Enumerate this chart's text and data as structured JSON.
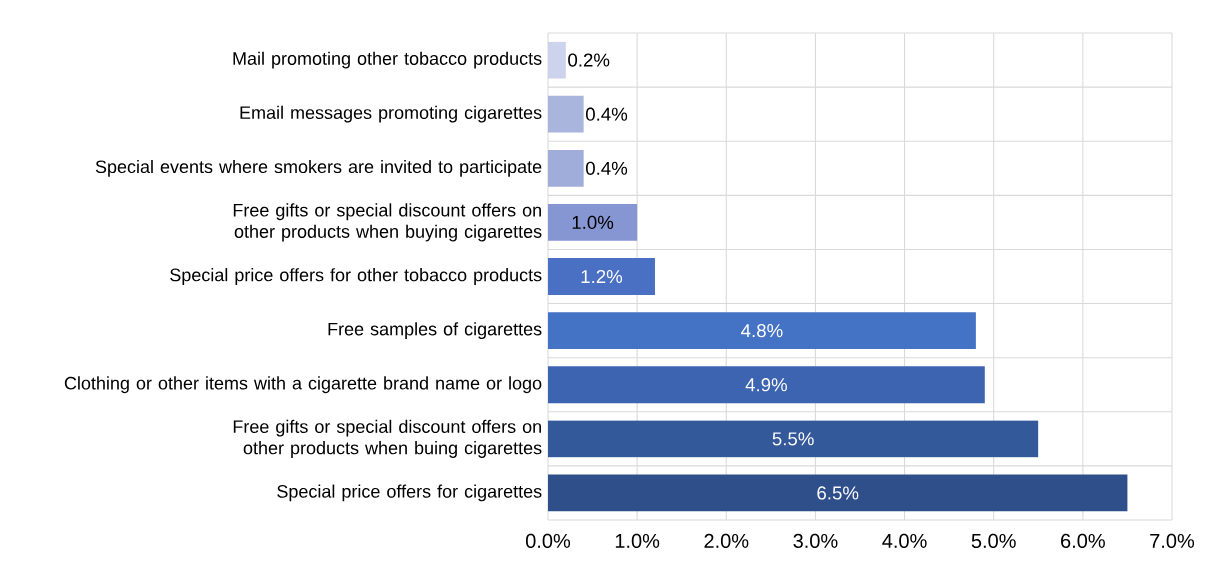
{
  "chart_data": {
    "type": "bar",
    "orientation": "horizontal",
    "categories": [
      "Mail promoting other tobacco products",
      "Email messages promoting cigarettes",
      "Special events where smokers are invited to participate",
      "Free gifts or special discount offers on other products when buying cigarettes",
      "Special price offers for other tobacco products",
      "Free samples of cigarettes",
      "Clothing or other items with a cigarette brand name or logo",
      "Free gifts or special discount offers on other products when buing cigarettes",
      "Special price offers for cigarettes"
    ],
    "values": [
      0.2,
      0.4,
      0.4,
      1.0,
      1.2,
      4.8,
      4.9,
      5.5,
      6.5
    ],
    "value_labels": [
      "0.2%",
      "0.4%",
      "0.4%",
      "1.0%",
      "1.2%",
      "4.8%",
      "4.9%",
      "5.5%",
      "6.5%"
    ],
    "colors": [
      "#cdd3ec",
      "#aab5de",
      "#a0acd9",
      "#8596d3",
      "#4a70c4",
      "#4472c4",
      "#3d64b0",
      "#34599a",
      "#2f4f8a"
    ],
    "xlim": [
      0,
      7
    ],
    "xticks": [
      {
        "value": 0,
        "label": "0.0%"
      },
      {
        "value": 1,
        "label": "1.0%"
      },
      {
        "value": 2,
        "label": "2.0%"
      },
      {
        "value": 3,
        "label": "3.0%"
      },
      {
        "value": 4,
        "label": "4.0%"
      },
      {
        "value": 5,
        "label": "5.0%"
      },
      {
        "value": 6,
        "label": "6.0%"
      },
      {
        "value": 7,
        "label": "7.0%"
      }
    ],
    "grid": true
  }
}
